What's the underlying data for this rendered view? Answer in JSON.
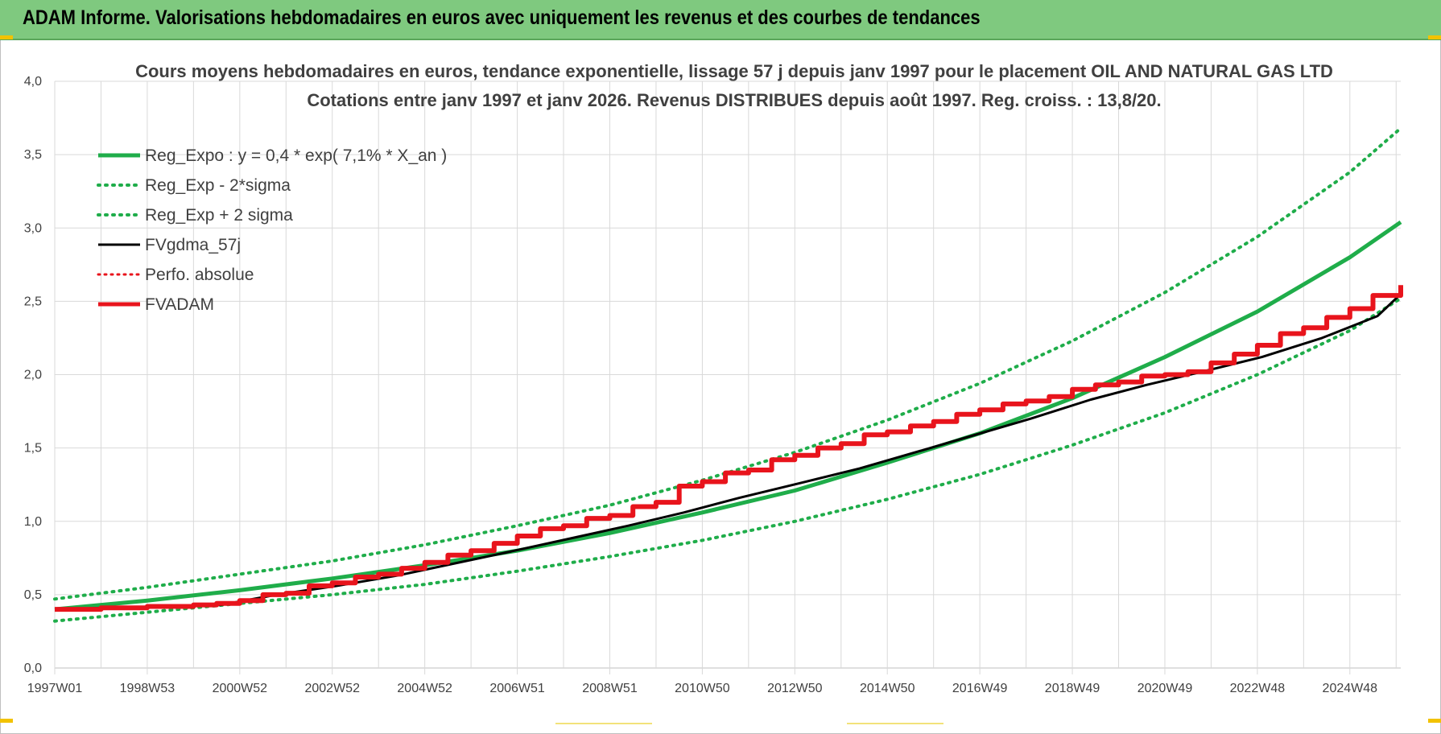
{
  "header": {
    "title": "ADAM Informe. Valorisations hebdomadaires en euros avec uniquement les revenus et des courbes de tendances"
  },
  "colors": {
    "banner": "#7fc97f",
    "green": "#1fad4a",
    "black": "#000000",
    "red": "#e8141c"
  },
  "chart_data": {
    "type": "line",
    "title": "Cours moyens hebdomadaires en euros, tendance exponentielle, lissage 57 j depuis janv 1997 pour le placement OIL AND NATURAL GAS LTD",
    "subtitle": "Cotations entre janv 1997 et janv 2026. Revenus DISTRIBUES depuis août 1997. Reg. croiss. : 13,8/20.",
    "ylim": [
      0,
      4
    ],
    "xlim": [
      1997.0,
      2026.1
    ],
    "grid": true,
    "legend_position": "top-left",
    "y_ticks": [
      "0,0",
      "0,5",
      "1,0",
      "1,5",
      "2,0",
      "2,5",
      "3,0",
      "3,5",
      "4,0"
    ],
    "x_ticks": [
      "1997W01",
      "1998W53",
      "2000W52",
      "2002W52",
      "2004W52",
      "2006W51",
      "2008W51",
      "2010W50",
      "2012W50",
      "2014W50",
      "2016W49",
      "2018W49",
      "2020W49",
      "2022W48",
      "2024W48"
    ],
    "series": [
      {
        "name": "Reg_Expo : y = 0,4 * exp( 7,1% *  X_an )",
        "style": "solid-green",
        "x": [
          1997,
          1999,
          2001,
          2003,
          2005,
          2007,
          2009,
          2011,
          2013,
          2015,
          2017,
          2019,
          2021,
          2023,
          2025,
          2026.1
        ],
        "values": [
          0.4,
          0.46,
          0.53,
          0.61,
          0.7,
          0.8,
          0.92,
          1.06,
          1.21,
          1.4,
          1.6,
          1.84,
          2.12,
          2.43,
          2.8,
          3.04
        ]
      },
      {
        "name": "Reg_Exp - 2*sigma",
        "style": "dotted-green",
        "x": [
          1997,
          1999,
          2001,
          2003,
          2005,
          2007,
          2009,
          2011,
          2013,
          2015,
          2017,
          2019,
          2021,
          2023,
          2025,
          2026.1
        ],
        "values": [
          0.32,
          0.38,
          0.44,
          0.5,
          0.57,
          0.66,
          0.76,
          0.87,
          1.0,
          1.15,
          1.32,
          1.52,
          1.74,
          2.0,
          2.3,
          2.52
        ]
      },
      {
        "name": "Reg_Exp + 2 sigma",
        "style": "dotted-green",
        "x": [
          1997,
          1999,
          2001,
          2003,
          2005,
          2007,
          2009,
          2011,
          2013,
          2015,
          2017,
          2019,
          2021,
          2023,
          2025,
          2026.1
        ],
        "values": [
          0.47,
          0.55,
          0.64,
          0.73,
          0.84,
          0.97,
          1.11,
          1.28,
          1.47,
          1.69,
          1.94,
          2.23,
          2.56,
          2.94,
          3.38,
          3.68
        ]
      },
      {
        "name": "FVgdma_57j",
        "style": "solid-black",
        "x": [
          1997,
          2000.6,
          2001.8,
          2003.1,
          2004.4,
          2005.6,
          2006.8,
          2008.1,
          2009.4,
          2010.6,
          2011.8,
          2013.1,
          2014.4,
          2015.6,
          2016.8,
          2018.1,
          2019.4,
          2020.6,
          2021.8,
          2023.1,
          2024.4,
          2025.6,
          2026.1
        ],
        "values": [
          0.4,
          0.43,
          0.5,
          0.56,
          0.63,
          0.71,
          0.79,
          0.88,
          0.97,
          1.06,
          1.16,
          1.26,
          1.36,
          1.47,
          1.58,
          1.7,
          1.83,
          1.93,
          2.02,
          2.12,
          2.25,
          2.4,
          2.55
        ]
      },
      {
        "name": "Perfo. absolue",
        "style": "dotted-red",
        "x": [],
        "values": []
      },
      {
        "name": "FVADAM",
        "style": "thick-red-steps",
        "x": [
          1997,
          1998,
          1999,
          2000,
          2000.5,
          2001,
          2001.5,
          2002,
          2002.5,
          2003,
          2003.5,
          2004,
          2004.5,
          2005,
          2005.5,
          2006,
          2006.5,
          2007,
          2007.5,
          2008,
          2008.5,
          2009,
          2009.5,
          2010,
          2010.5,
          2011,
          2011.5,
          2012,
          2012.5,
          2013,
          2013.5,
          2014,
          2014.5,
          2015,
          2015.5,
          2016,
          2016.5,
          2017,
          2017.5,
          2018,
          2018.5,
          2019,
          2019.5,
          2020,
          2020.5,
          2021,
          2021.5,
          2022,
          2022.5,
          2023,
          2023.5,
          2024,
          2024.5,
          2025,
          2025.5,
          2026.1
        ],
        "values": [
          0.4,
          0.41,
          0.42,
          0.43,
          0.44,
          0.46,
          0.5,
          0.51,
          0.56,
          0.58,
          0.62,
          0.64,
          0.68,
          0.72,
          0.77,
          0.8,
          0.85,
          0.9,
          0.95,
          0.97,
          1.02,
          1.04,
          1.1,
          1.13,
          1.24,
          1.27,
          1.33,
          1.35,
          1.42,
          1.45,
          1.5,
          1.53,
          1.59,
          1.61,
          1.65,
          1.68,
          1.73,
          1.76,
          1.8,
          1.82,
          1.85,
          1.9,
          1.93,
          1.95,
          1.99,
          2.0,
          2.02,
          2.08,
          2.14,
          2.2,
          2.28,
          2.32,
          2.39,
          2.45,
          2.54,
          2.61
        ]
      }
    ]
  }
}
